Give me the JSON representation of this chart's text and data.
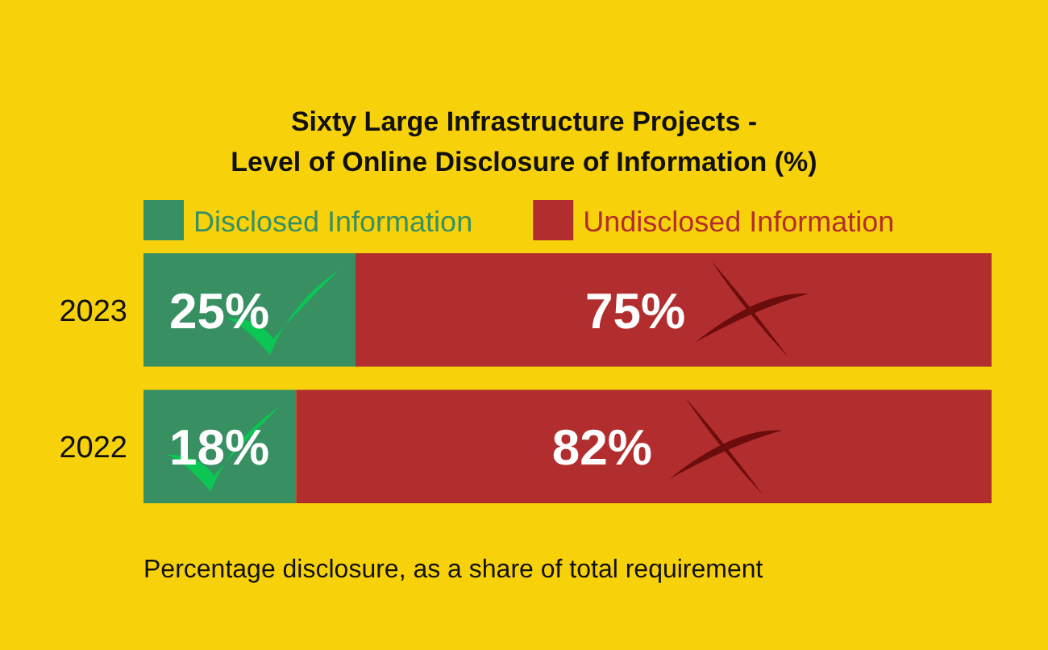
{
  "chart_data": {
    "type": "bar",
    "orientation": "horizontal",
    "stacked": true,
    "title": "Sixty Large Infrastructure Projects -\nLevel of Online Disclosure of Information (%)",
    "categories": [
      "2023",
      "2022"
    ],
    "series": [
      {
        "name": "Disclosed Information",
        "color": "#378f62",
        "values": [
          25,
          18
        ],
        "value_labels": [
          "25%",
          "18%"
        ]
      },
      {
        "name": "Undisclosed Information",
        "color": "#b22d2d",
        "values": [
          75,
          82
        ],
        "value_labels": [
          "75%",
          "82%"
        ]
      }
    ],
    "legend": "top",
    "annotations": [
      "Percentage disclosure, as a share of total requirement"
    ]
  }
}
